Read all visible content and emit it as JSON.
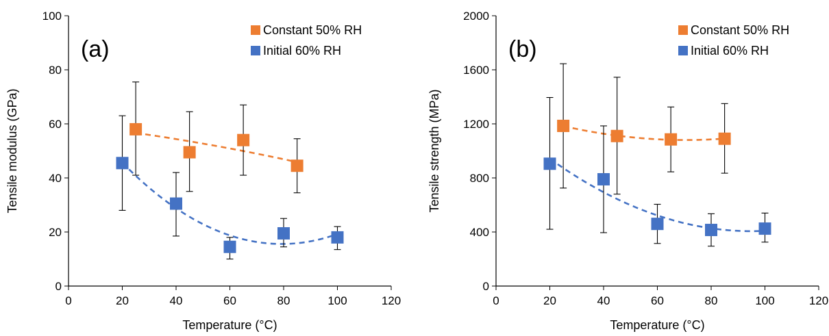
{
  "chart_data": [
    {
      "type": "scatter",
      "panel_label": "(a)",
      "xlabel": "Temperature (°C)",
      "ylabel": "Tensile modulus (GPa)",
      "xlim": [
        0,
        120
      ],
      "ylim": [
        0,
        100
      ],
      "x_ticks": [
        0,
        20,
        40,
        60,
        80,
        100,
        120
      ],
      "y_ticks": [
        0,
        20,
        40,
        60,
        80,
        100
      ],
      "grid": false,
      "legend_position": "top-right",
      "series": [
        {
          "name": "Constant 50% RH",
          "color": "#ED7D31",
          "marker": "square",
          "x": [
            25,
            45,
            65,
            85
          ],
          "y": [
            58,
            49.5,
            54,
            44.5
          ],
          "err_low": [
            41,
            35,
            41,
            34.5
          ],
          "err_high": [
            75.5,
            64.5,
            67,
            54.5
          ],
          "trend": "quadratic-dashed"
        },
        {
          "name": "Initial 60% RH",
          "color": "#4472C4",
          "marker": "square",
          "x": [
            20,
            40,
            60,
            80,
            100
          ],
          "y": [
            45.5,
            30.5,
            14.5,
            19.5,
            18
          ],
          "err_low": [
            28,
            18.5,
            10,
            14.5,
            13.5
          ],
          "err_high": [
            63,
            42,
            18,
            25,
            22
          ],
          "trend": "quadratic-dashed"
        }
      ]
    },
    {
      "type": "scatter",
      "panel_label": "(b)",
      "xlabel": "Temperature (°C)",
      "ylabel": "Tensile strength (MPa)",
      "xlim": [
        0,
        120
      ],
      "ylim": [
        0,
        2000
      ],
      "x_ticks": [
        0,
        20,
        40,
        60,
        80,
        100,
        120
      ],
      "y_ticks": [
        0,
        400,
        800,
        1200,
        1600,
        2000
      ],
      "grid": false,
      "legend_position": "top-right",
      "series": [
        {
          "name": "Constant 50% RH",
          "color": "#ED7D31",
          "marker": "square",
          "x": [
            25,
            45,
            65,
            85
          ],
          "y": [
            1185,
            1110,
            1085,
            1090
          ],
          "err_low": [
            725,
            680,
            845,
            835
          ],
          "err_high": [
            1645,
            1545,
            1325,
            1350
          ],
          "trend": "quadratic-dashed"
        },
        {
          "name": "Initial 60% RH",
          "color": "#4472C4",
          "marker": "square",
          "x": [
            20,
            40,
            60,
            80,
            100
          ],
          "y": [
            905,
            790,
            460,
            415,
            425
          ],
          "err_low": [
            420,
            395,
            315,
            295,
            325
          ],
          "err_high": [
            1395,
            1185,
            605,
            535,
            540
          ],
          "trend": "quadratic-dashed"
        }
      ]
    }
  ]
}
